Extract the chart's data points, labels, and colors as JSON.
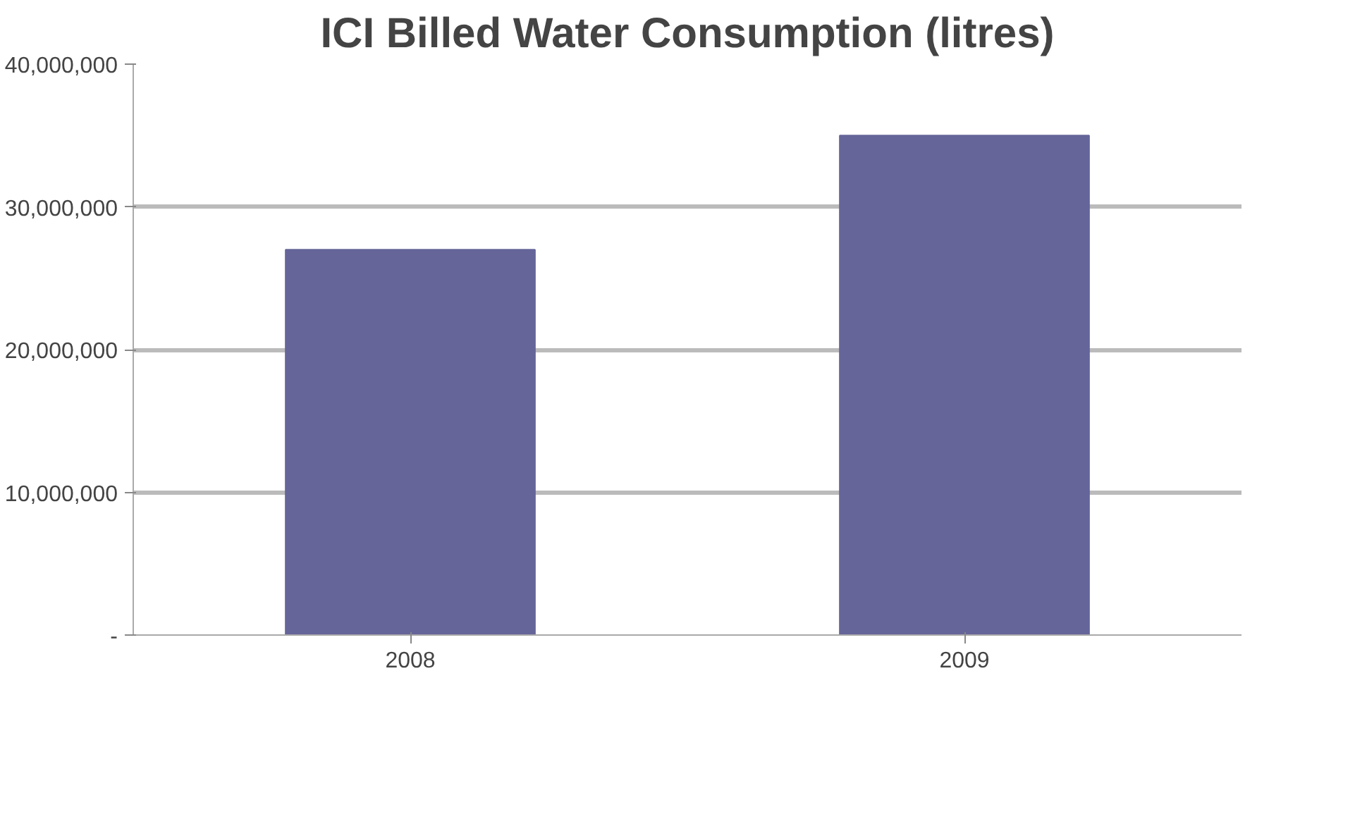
{
  "chart_data": {
    "type": "bar",
    "title": "ICI Billed Water Consumption (litres)",
    "categories": [
      "2008",
      "2009"
    ],
    "values": [
      27000000,
      35000000
    ],
    "color": "#65659a",
    "ylim": [
      0,
      40000000
    ],
    "yticks": [
      {
        "value": 0,
        "label": "-"
      },
      {
        "value": 10000000,
        "label": "10,000,000"
      },
      {
        "value": 20000000,
        "label": "20,000,000"
      },
      {
        "value": 30000000,
        "label": "30,000,000"
      },
      {
        "value": 40000000,
        "label": "40,000,000"
      }
    ],
    "grid": "y"
  }
}
